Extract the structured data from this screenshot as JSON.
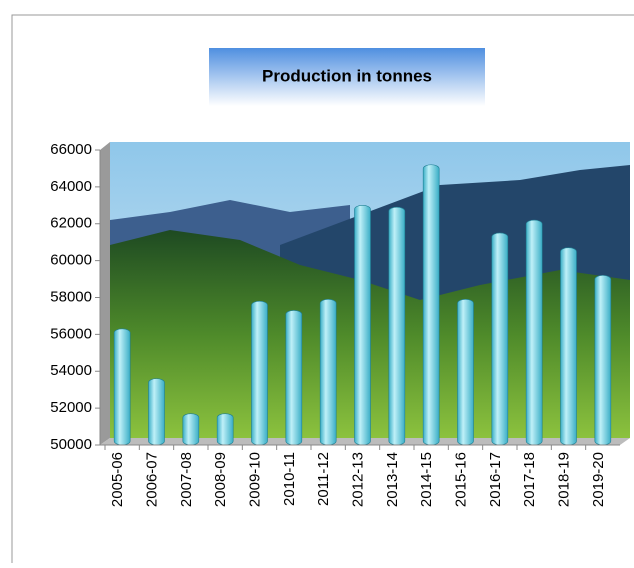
{
  "chart_data": {
    "type": "bar",
    "title": "Production in tonnes",
    "categories": [
      "2005-06",
      "2006-07",
      "2007-08",
      "2008-09",
      "2009-10",
      "2010-11",
      "2011-12",
      "2012-13",
      "2013-14",
      "2014-15",
      "2015-16",
      "2016-17",
      "2017-18",
      "2018-19",
      "2019-20"
    ],
    "values": [
      56300,
      53600,
      51700,
      51700,
      57800,
      57300,
      57900,
      63000,
      62900,
      65200,
      57900,
      61500,
      62200,
      60700,
      59200
    ],
    "color": "#3aaec6",
    "ylim": [
      50000,
      66000
    ],
    "yticks": [
      50000,
      52000,
      54000,
      56000,
      58000,
      60000,
      62000,
      64000,
      66000
    ]
  }
}
